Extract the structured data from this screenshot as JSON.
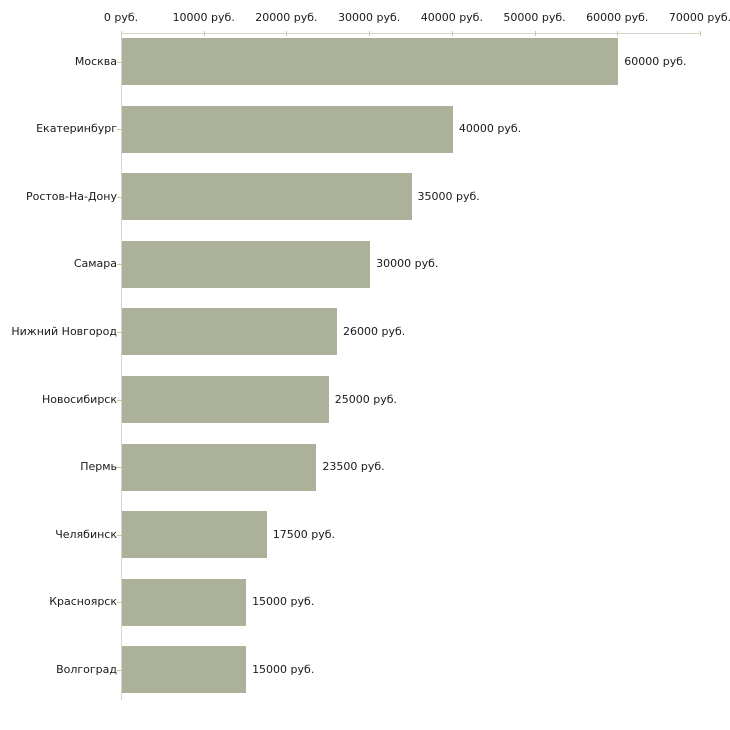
{
  "chart_data": {
    "type": "bar",
    "orientation": "horizontal",
    "title": "",
    "legend": "none",
    "grid": false,
    "categories": [
      "Москва",
      "Екатеринбург",
      "Ростов-На-Дону",
      "Самара",
      "Нижний Новгород",
      "Новосибирск",
      "Пермь",
      "Челябинск",
      "Красноярск",
      "Волгоград"
    ],
    "values": [
      60000,
      40000,
      35000,
      30000,
      26000,
      25000,
      23500,
      17500,
      15000,
      15000
    ],
    "value_labels": [
      "60000 руб.",
      "40000 руб.",
      "35000 руб.",
      "30000 руб.",
      "26000 руб.",
      "25000 руб.",
      "23500 руб.",
      "17500 руб.",
      "15000 руб.",
      "15000 руб."
    ],
    "x_axis": {
      "position": "top",
      "xlim": [
        0,
        70000
      ],
      "tick_values": [
        0,
        10000,
        20000,
        30000,
        40000,
        50000,
        60000,
        70000
      ],
      "tick_labels": [
        "0 руб.",
        "10000 руб.",
        "20000 руб.",
        "30000 руб.",
        "40000 руб.",
        "50000 руб.",
        "60000 руб.",
        "70000 руб."
      ]
    },
    "colors": {
      "bar_fill": "#ACB299",
      "axis_line": "#D5D5CD",
      "tick_mark": "#C7C7A2",
      "text": "#1A1A1A",
      "background": "#FFFFFF"
    }
  }
}
